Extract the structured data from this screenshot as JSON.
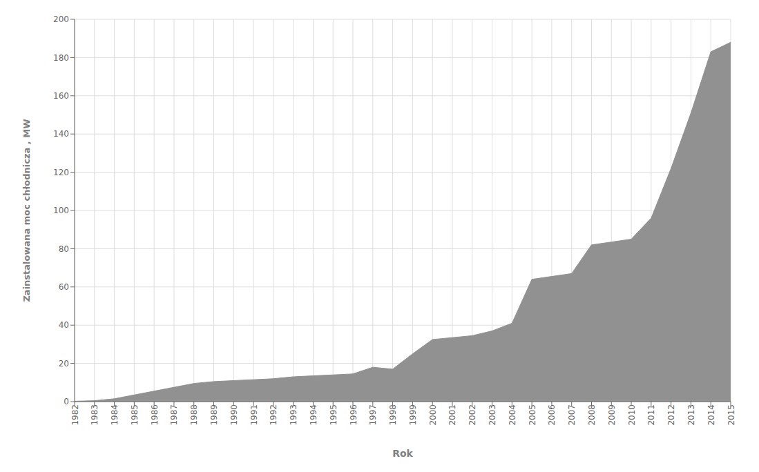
{
  "chart_data": {
    "type": "area",
    "xlabel": "Rok",
    "ylabel": "Zainstalowana moc chłodnicza , MW",
    "x": [
      1982,
      1983,
      1984,
      1985,
      1986,
      1987,
      1988,
      1989,
      1990,
      1991,
      1992,
      1993,
      1994,
      1995,
      1996,
      1997,
      1998,
      1999,
      2000,
      2001,
      2002,
      2003,
      2004,
      2005,
      2006,
      2007,
      2008,
      2009,
      2010,
      2011,
      2012,
      2013,
      2014,
      2015
    ],
    "values": [
      0.2,
      0.5,
      1.5,
      3.5,
      5.5,
      7.5,
      9.5,
      10.5,
      11.0,
      11.5,
      12.0,
      13.0,
      13.5,
      14.0,
      14.5,
      18.0,
      17.0,
      25.0,
      32.5,
      33.5,
      34.5,
      37.0,
      41.0,
      64.0,
      65.5,
      67.0,
      82.0,
      83.5,
      85.0,
      96.0,
      122.0,
      151.0,
      183.0,
      188.0
    ],
    "color": "#919191",
    "xlim": [
      1982,
      2015
    ],
    "xticks": [
      1982,
      1983,
      1984,
      1985,
      1986,
      1987,
      1988,
      1989,
      1990,
      1991,
      1992,
      1993,
      1994,
      1995,
      1996,
      1997,
      1998,
      1999,
      2000,
      2001,
      2002,
      2003,
      2004,
      2005,
      2006,
      2007,
      2008,
      2009,
      2010,
      2011,
      2012,
      2013,
      2014,
      2015
    ],
    "ylim": [
      0,
      200
    ],
    "yticks": [
      0,
      20,
      40,
      60,
      80,
      100,
      120,
      140,
      160,
      180,
      200
    ],
    "grid": true
  }
}
